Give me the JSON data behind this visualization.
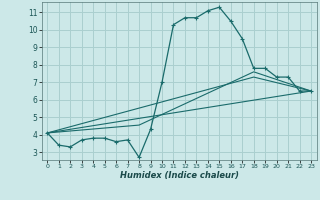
{
  "xlabel": "Humidex (Indice chaleur)",
  "bg_color": "#cce8e8",
  "grid_color": "#aacfcf",
  "line_color": "#1a6b6b",
  "xlim": [
    -0.5,
    23.5
  ],
  "ylim": [
    2.55,
    11.6
  ],
  "xticks": [
    0,
    1,
    2,
    3,
    4,
    5,
    6,
    7,
    8,
    9,
    10,
    11,
    12,
    13,
    14,
    15,
    16,
    17,
    18,
    19,
    20,
    21,
    22,
    23
  ],
  "yticks": [
    3,
    4,
    5,
    6,
    7,
    8,
    9,
    10,
    11
  ],
  "curve1_x": [
    0,
    1,
    2,
    3,
    4,
    5,
    6,
    7,
    8,
    9,
    10,
    11,
    12,
    13,
    14,
    15,
    16,
    17,
    18,
    19,
    20,
    21,
    22,
    23
  ],
  "curve1_y": [
    4.1,
    3.4,
    3.3,
    3.7,
    3.8,
    3.8,
    3.6,
    3.7,
    2.7,
    4.3,
    7.0,
    10.3,
    10.7,
    10.7,
    11.1,
    11.3,
    10.5,
    9.5,
    7.8,
    7.8,
    7.3,
    7.3,
    6.5,
    6.5
  ],
  "curve2_x": [
    0,
    23
  ],
  "curve2_y": [
    4.1,
    6.5
  ],
  "curve3_x": [
    0,
    8,
    18,
    23
  ],
  "curve3_y": [
    4.1,
    4.55,
    7.6,
    6.5
  ],
  "curve4_x": [
    0,
    18,
    23
  ],
  "curve4_y": [
    4.1,
    7.3,
    6.5
  ]
}
